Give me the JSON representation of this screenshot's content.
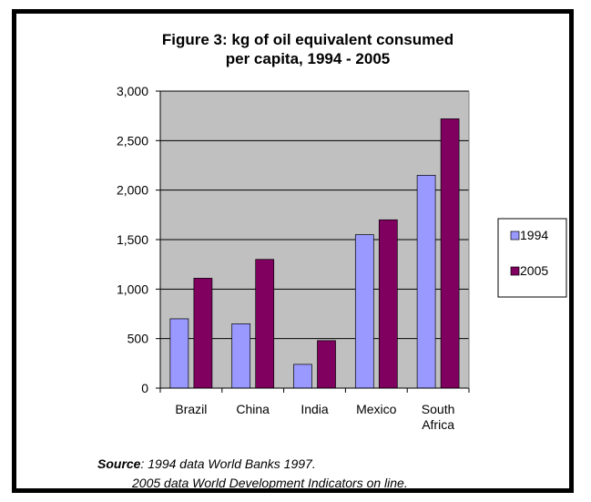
{
  "chart_data": {
    "type": "bar",
    "title_line1": "Figure 3: kg of oil equivalent consumed",
    "title_line2": "per capita, 1994 - 2005",
    "categories": [
      [
        "Brazil"
      ],
      [
        "China"
      ],
      [
        "India"
      ],
      [
        "Mexico"
      ],
      [
        "South",
        "Africa"
      ]
    ],
    "series": [
      {
        "name": "1994",
        "color": "#9999ff",
        "values": [
          700,
          650,
          240,
          1550,
          2150
        ]
      },
      {
        "name": "2005",
        "color": "#800060",
        "values": [
          1110,
          1300,
          480,
          1700,
          2720
        ]
      }
    ],
    "ylim": [
      0,
      3000
    ],
    "yticks": [
      0,
      500,
      1000,
      1500,
      2000,
      2500,
      3000
    ],
    "ytick_labels": [
      "0",
      "500",
      "1,000",
      "1,500",
      "2,000",
      "2,500",
      "3,000"
    ],
    "grid": true,
    "plot_background": "#c0c0c0",
    "legend_position": "right"
  },
  "source": {
    "label": "Source",
    "line1": ": 1994  data World Banks 1997.",
    "line2": "2005  data World Development Indicators on line."
  }
}
